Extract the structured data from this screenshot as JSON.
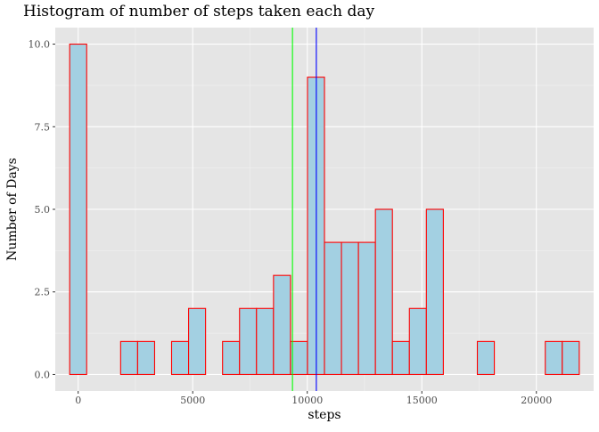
{
  "chart_data": {
    "type": "bar",
    "title": "Histogram of number of steps taken each day",
    "xlabel": "steps",
    "ylabel": "Number of Days",
    "xlim": [
      -1000,
      22500
    ],
    "ylim": [
      -0.5,
      10.5
    ],
    "x_ticks": [
      0,
      5000,
      10000,
      15000,
      20000
    ],
    "x_tick_labels": [
      "0",
      "5000",
      "10000",
      "15000",
      "20000"
    ],
    "y_ticks": [
      0,
      2.5,
      5,
      7.5,
      10
    ],
    "y_tick_labels": [
      "0.0",
      "2.5",
      "5.0",
      "7.5",
      "10.0"
    ],
    "bin_width": 741.4,
    "bin_centers": [
      0,
      741,
      1483,
      2224,
      2966,
      3707,
      4448,
      5190,
      5931,
      6673,
      7414,
      8155,
      8897,
      9638,
      10380,
      11121,
      11862,
      12604,
      13345,
      14087,
      14828,
      15569,
      16311,
      17052,
      17794,
      18535,
      19276,
      20018,
      20759,
      21501
    ],
    "values": [
      10,
      0,
      0,
      1,
      1,
      0,
      1,
      2,
      0,
      1,
      2,
      2,
      3,
      1,
      9,
      4,
      4,
      4,
      5,
      1,
      2,
      5,
      0,
      0,
      1,
      0,
      0,
      0,
      1,
      1
    ],
    "vlines": [
      {
        "x": 9354,
        "color": "#00ff00"
      },
      {
        "x": 10395,
        "color": "#0000ff"
      }
    ],
    "colors": {
      "bar_fill": "#a3d0e2",
      "bar_outline": "#ff0000",
      "panel_bg": "#e5e5e5",
      "grid_major": "#ffffff",
      "grid_minor": "#f2f2f2"
    },
    "grid": true
  }
}
